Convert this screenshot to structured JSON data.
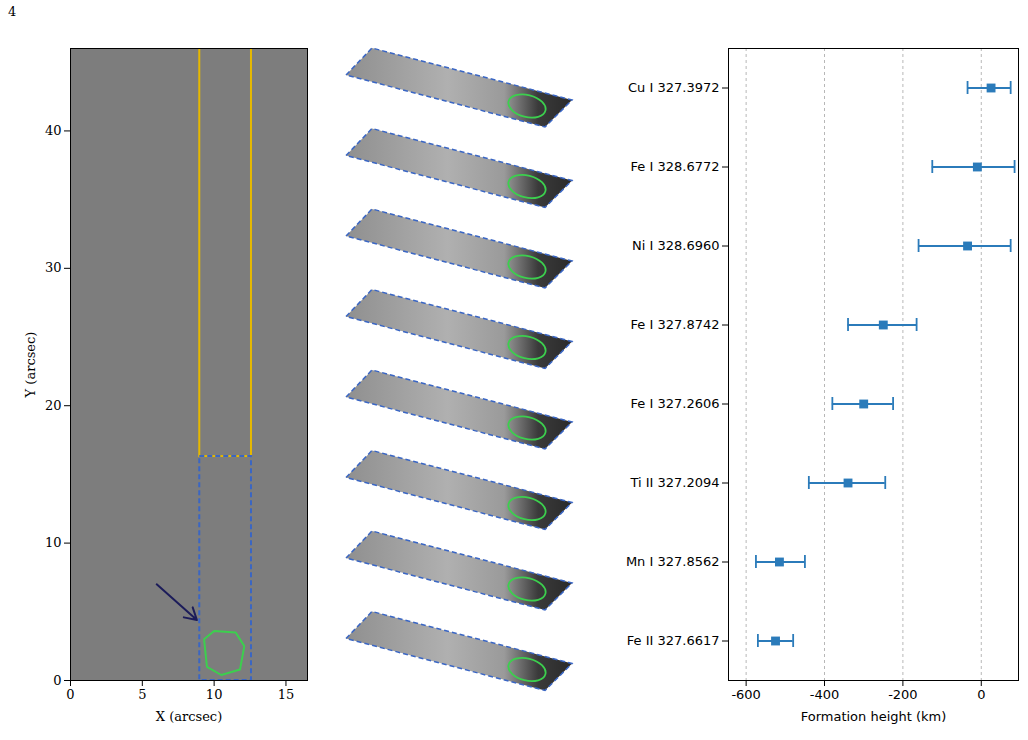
{
  "page_number": "4",
  "chart_data": [
    {
      "type": "image",
      "xlabel": "X (arcsec)",
      "ylabel": "Y (arcsec)",
      "xlim": [
        0,
        16.5
      ],
      "ylim": [
        0,
        46
      ],
      "xticks": [
        0,
        5,
        10,
        15
      ],
      "yticks": [
        0,
        10,
        20,
        30,
        40
      ],
      "boxes": [
        {
          "x": [
            9,
            12.6
          ],
          "y": [
            16.3,
            46
          ],
          "color": "#e6b800",
          "line_style": "solid"
        },
        {
          "x": [
            9,
            12.6
          ],
          "y": [
            0,
            16.3
          ],
          "color": "#3a66c4",
          "line_style": "dashed"
        }
      ],
      "contour": {
        "x": [
          9.5,
          9.3,
          10.0,
          11.5,
          12.1,
          11.8,
          10.5,
          9.5
        ],
        "y": [
          1.0,
          3.0,
          3.6,
          3.5,
          2.5,
          0.8,
          0.4,
          1.0
        ],
        "color": "#3ccf4e"
      },
      "arrow": {
        "x": [
          6,
          8.8
        ],
        "y": [
          7,
          4.4
        ],
        "color": "#1c1c5a"
      }
    },
    {
      "type": "errorbar",
      "orientation": "horizontal",
      "categories": [
        "Cu I 327.3972",
        "Fe I 328.6772",
        "Ni I 328.6960",
        "Fe I 327.8742",
        "Fe I 327.2606",
        "Ti II 327.2094",
        "Mn I 327.8562",
        "Fe II 327.6617"
      ],
      "values": [
        25,
        -10,
        -35,
        -250,
        -300,
        -340,
        -515,
        -525
      ],
      "lower": [
        -35,
        -125,
        -160,
        -340,
        -380,
        -440,
        -575,
        -570
      ],
      "upper": [
        75,
        85,
        75,
        -165,
        -225,
        -245,
        -450,
        -480
      ],
      "xlim": [
        -645,
        95
      ],
      "xticks": [
        -600,
        -400,
        -200,
        0
      ],
      "xlabel": "Formation height (km)",
      "color": "#2b7bba",
      "marker": "square",
      "grid": true
    }
  ]
}
